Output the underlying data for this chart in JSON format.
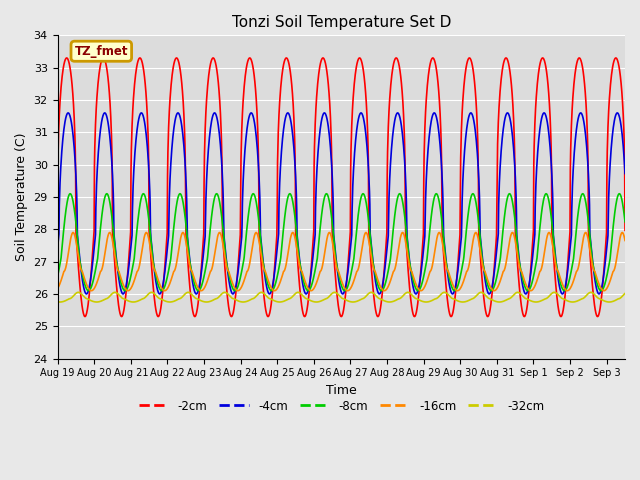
{
  "title": "Tonzi Soil Temperature Set D",
  "xlabel": "Time",
  "ylabel": "Soil Temperature (C)",
  "ylim": [
    24.0,
    34.0
  ],
  "yticks": [
    24.0,
    25.0,
    26.0,
    27.0,
    28.0,
    29.0,
    30.0,
    31.0,
    32.0,
    33.0,
    34.0
  ],
  "xtick_labels": [
    "Aug 19",
    "Aug 20",
    "Aug 21",
    "Aug 22",
    "Aug 23",
    "Aug 24",
    "Aug 25",
    "Aug 26",
    "Aug 27",
    "Aug 28",
    "Aug 29",
    "Aug 30",
    "Aug 31",
    "Sep 1",
    "Sep 2",
    "Sep 3"
  ],
  "annotation_text": "TZ_fmet",
  "annotation_bg": "#ffffcc",
  "annotation_border": "#cc9900",
  "lines": [
    {
      "label": "-2cm",
      "color": "#ff0000",
      "lw": 1.2,
      "mean_base": 29.3,
      "amp": 4.0,
      "phase": 0.0,
      "phase2": 0.0,
      "amp2": 0.0,
      "sharpness": 6
    },
    {
      "label": "-4cm",
      "color": "#0000dd",
      "lw": 1.2,
      "mean_base": 28.8,
      "amp": 2.8,
      "phase": 0.25,
      "phase2": 0.25,
      "amp2": 0.0,
      "sharpness": 4
    },
    {
      "label": "-8cm",
      "color": "#00cc00",
      "lw": 1.2,
      "mean_base": 27.6,
      "amp": 1.5,
      "phase": 0.6,
      "phase2": 0.6,
      "amp2": 0.0,
      "sharpness": 2
    },
    {
      "label": "-16cm",
      "color": "#ff8800",
      "lw": 1.2,
      "mean_base": 27.0,
      "amp": 0.9,
      "phase": 1.1,
      "phase2": 1.1,
      "amp2": 0.0,
      "sharpness": 1
    },
    {
      "label": "-32cm",
      "color": "#cccc00",
      "lw": 1.2,
      "mean_base": 25.9,
      "amp": 0.15,
      "phase": 2.0,
      "phase2": 2.0,
      "amp2": 0.0,
      "sharpness": 1
    }
  ],
  "plot_bg": "#dcdcdc",
  "grid_color": "#ffffff",
  "n_points": 1600,
  "days": 15.5,
  "legend_colors": [
    "#ff0000",
    "#0000dd",
    "#00cc00",
    "#ff8800",
    "#cccc00"
  ],
  "legend_labels": [
    "-2cm",
    "-4cm",
    "-8cm",
    "-16cm",
    "-32cm"
  ],
  "fig_bg": "#e8e8e8"
}
